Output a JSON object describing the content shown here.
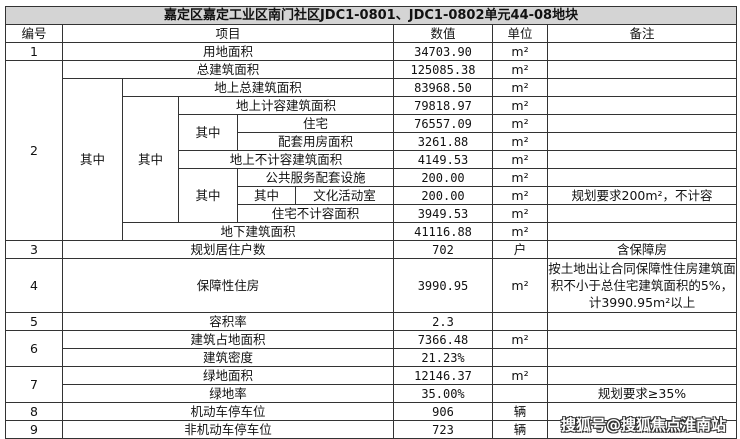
{
  "title": "嘉定区嘉定工业区南门社区JDC1-0801、JDC1-0802单元44-08地块",
  "headers": {
    "no": "编号",
    "item": "项目",
    "value": "数值",
    "unit": "单位",
    "note": "备注"
  },
  "sub_label": "其中",
  "rows": {
    "r1": {
      "no": "1",
      "item": "用地面积",
      "value": "34703.90",
      "unit": "m²",
      "note": ""
    },
    "r2_total": {
      "no": "2",
      "item": "总建筑面积",
      "value": "125085.38",
      "unit": "m²"
    },
    "r2_above": {
      "item": "地上总建筑面积",
      "value": "83968.50",
      "unit": "m²"
    },
    "r2_far": {
      "item": "地上计容建筑面积",
      "value": "79818.97",
      "unit": "m²"
    },
    "r2_res": {
      "item": "住宅",
      "value": "76557.09",
      "unit": "m²"
    },
    "r2_supp": {
      "item": "配套用房面积",
      "value": "3261.88",
      "unit": "m²"
    },
    "r2_nonfar": {
      "item": "地上不计容建筑面积",
      "value": "4149.53",
      "unit": "m²"
    },
    "r2_public": {
      "item": "公共服务配套设施",
      "value": "200.00",
      "unit": "m²"
    },
    "r2_culture": {
      "item": "文化活动室",
      "value": "200.00",
      "unit": "m²",
      "note": "规划要求200m²，不计容"
    },
    "r2_resnonfar": {
      "item": "住宅不计容面积",
      "value": "3949.53",
      "unit": "m²"
    },
    "r2_under": {
      "item": "地下建筑面积",
      "value": "41116.88",
      "unit": "m²"
    },
    "r3": {
      "no": "3",
      "item": "规划居住户数",
      "value": "702",
      "unit": "户",
      "note": "含保障房"
    },
    "r4": {
      "no": "4",
      "item": "保障性住房",
      "value": "3990.95",
      "unit": "m²",
      "note": "按土地出让合同保障性住房建筑面积不小于总住宅建筑面积的5%，计3990.95m²以上"
    },
    "r5": {
      "no": "5",
      "item": "容积率",
      "value": "2.3",
      "unit": ""
    },
    "r6a": {
      "no": "6",
      "item": "建筑占地面积",
      "value": "7366.48",
      "unit": "m²"
    },
    "r6b": {
      "item": "建筑密度",
      "value": "21.23%",
      "unit": ""
    },
    "r7a": {
      "no": "7",
      "item": "绿地面积",
      "value": "12146.37",
      "unit": "m²"
    },
    "r7b": {
      "item": "绿地率",
      "value": "35.00%",
      "unit": "",
      "note": "规划要求≥35%"
    },
    "r8": {
      "no": "8",
      "item": "机动车停车位",
      "value": "906",
      "unit": "辆"
    },
    "r9": {
      "no": "9",
      "item": "非机动车停车位",
      "value": "723",
      "unit": "辆"
    }
  },
  "watermark": "搜狐号@搜狐焦点淮南站"
}
